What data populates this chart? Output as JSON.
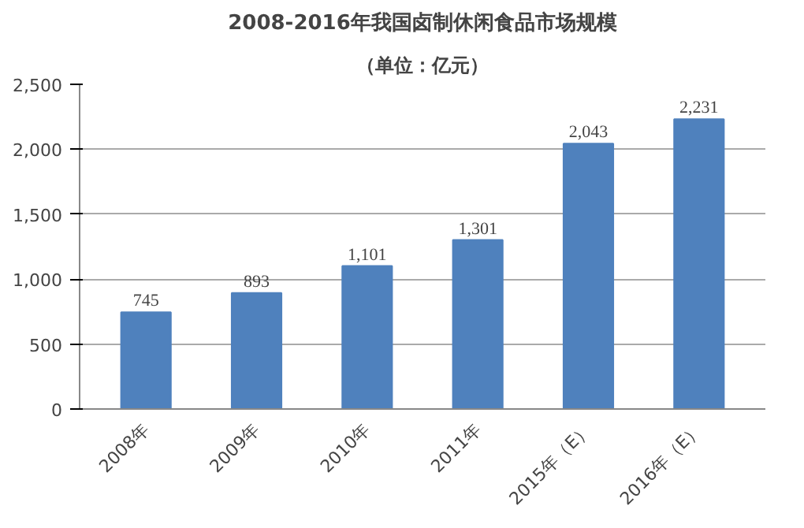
{
  "chart_data": {
    "type": "bar",
    "title": "2008-2016年我国卤制休闲食品市场规模",
    "subtitle": "（单位：亿元）",
    "categories": [
      "2008年",
      "2009年",
      "2010年",
      "2011年",
      "2015年（E）",
      "2016年（E）"
    ],
    "values": [
      745,
      893,
      1101,
      1301,
      2043,
      2231
    ],
    "value_labels": [
      "745",
      "893",
      "1,101",
      "1,301",
      "2,043",
      "2,231"
    ],
    "color": "#4f81bd",
    "ylim": [
      0,
      2500
    ],
    "yticks": [
      0,
      {
        "value": 500,
        "label": "500"
      },
      {
        "value": 1000,
        "label": "1,000"
      },
      {
        "value": 1500,
        "label": "1,500"
      },
      {
        "value": 2000,
        "label": "2,000"
      },
      {
        "value": 2500,
        "label": "2,500"
      }
    ],
    "grid": "y"
  }
}
